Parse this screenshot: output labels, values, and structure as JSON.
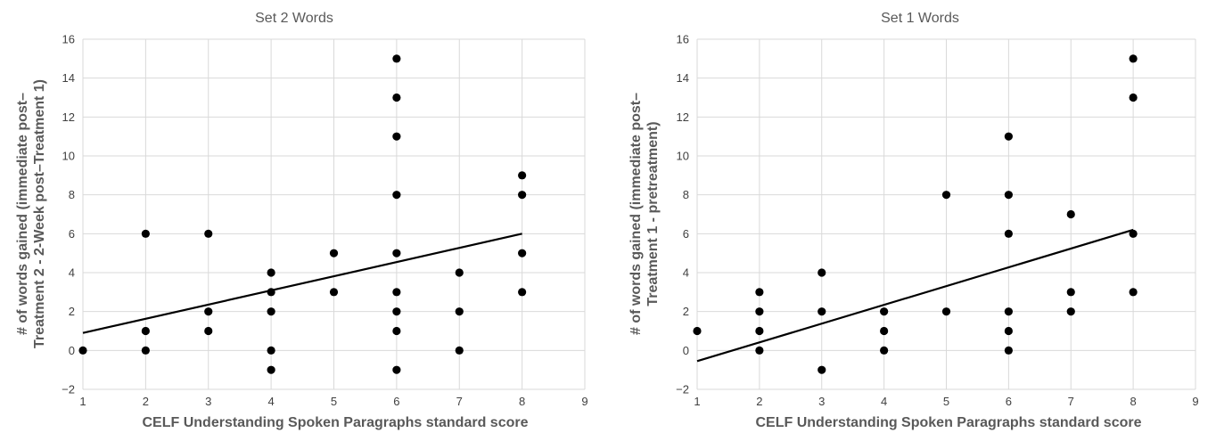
{
  "chart_data": [
    {
      "type": "scatter",
      "title": "Set 2 Words",
      "xlabel": "CELF Understanding Spoken Paragraphs standard score",
      "ylabel_lines": [
        "# of words gained (immediate post–",
        "Treatment 2 - 2-Week post–Treatment 1)"
      ],
      "xlim": [
        1,
        9
      ],
      "ylim": [
        -2,
        16
      ],
      "xticks": [
        1,
        2,
        3,
        4,
        5,
        6,
        7,
        8,
        9
      ],
      "yticks": [
        -2,
        0,
        2,
        4,
        6,
        8,
        10,
        12,
        14,
        16
      ],
      "ytick_labels": [
        "−2",
        "0",
        "2",
        "4",
        "6",
        "8",
        "10",
        "12",
        "14",
        "16"
      ],
      "grid": "horizontal and vertical",
      "points": [
        [
          1,
          0
        ],
        [
          2,
          6
        ],
        [
          2,
          1
        ],
        [
          2,
          0
        ],
        [
          3,
          6
        ],
        [
          3,
          2
        ],
        [
          3,
          1
        ],
        [
          4,
          4
        ],
        [
          4,
          3
        ],
        [
          4,
          2
        ],
        [
          4,
          0
        ],
        [
          4,
          -1
        ],
        [
          5,
          5
        ],
        [
          5,
          3
        ],
        [
          6,
          15
        ],
        [
          6,
          13
        ],
        [
          6,
          11
        ],
        [
          6,
          8
        ],
        [
          6,
          5
        ],
        [
          6,
          3
        ],
        [
          6,
          2
        ],
        [
          6,
          1
        ],
        [
          6,
          -1
        ],
        [
          7,
          4
        ],
        [
          7,
          2
        ],
        [
          7,
          0
        ],
        [
          8,
          9
        ],
        [
          8,
          8
        ],
        [
          8,
          5
        ],
        [
          8,
          3
        ]
      ],
      "trendline": {
        "x": [
          1,
          8
        ],
        "y": [
          0.9,
          6.0
        ]
      }
    },
    {
      "type": "scatter",
      "title": "Set 1 Words",
      "xlabel": "CELF Understanding Spoken Paragraphs standard score",
      "ylabel_lines": [
        "# of words gained (immediate post–",
        "Treatment 1 - pretreatment)"
      ],
      "xlim": [
        1,
        9
      ],
      "ylim": [
        -2,
        16
      ],
      "xticks": [
        1,
        2,
        3,
        4,
        5,
        6,
        7,
        8,
        9
      ],
      "yticks": [
        -2,
        0,
        2,
        4,
        6,
        8,
        10,
        12,
        14,
        16
      ],
      "ytick_labels": [
        "−2",
        "0",
        "2",
        "4",
        "6",
        "8",
        "10",
        "12",
        "14",
        "16"
      ],
      "grid": "horizontal and vertical",
      "points": [
        [
          1,
          1
        ],
        [
          2,
          3
        ],
        [
          2,
          2
        ],
        [
          2,
          1
        ],
        [
          2,
          0
        ],
        [
          3,
          4
        ],
        [
          3,
          2
        ],
        [
          3,
          -1
        ],
        [
          4,
          2
        ],
        [
          4,
          1
        ],
        [
          4,
          0
        ],
        [
          5,
          8
        ],
        [
          5,
          2
        ],
        [
          6,
          11
        ],
        [
          6,
          8
        ],
        [
          6,
          6
        ],
        [
          6,
          2
        ],
        [
          6,
          1
        ],
        [
          6,
          0
        ],
        [
          7,
          7
        ],
        [
          7,
          3
        ],
        [
          7,
          2
        ],
        [
          8,
          15
        ],
        [
          8,
          13
        ],
        [
          8,
          6
        ],
        [
          8,
          3
        ]
      ],
      "trendline": {
        "x": [
          1,
          8
        ],
        "y": [
          -0.55,
          6.2
        ]
      }
    }
  ]
}
